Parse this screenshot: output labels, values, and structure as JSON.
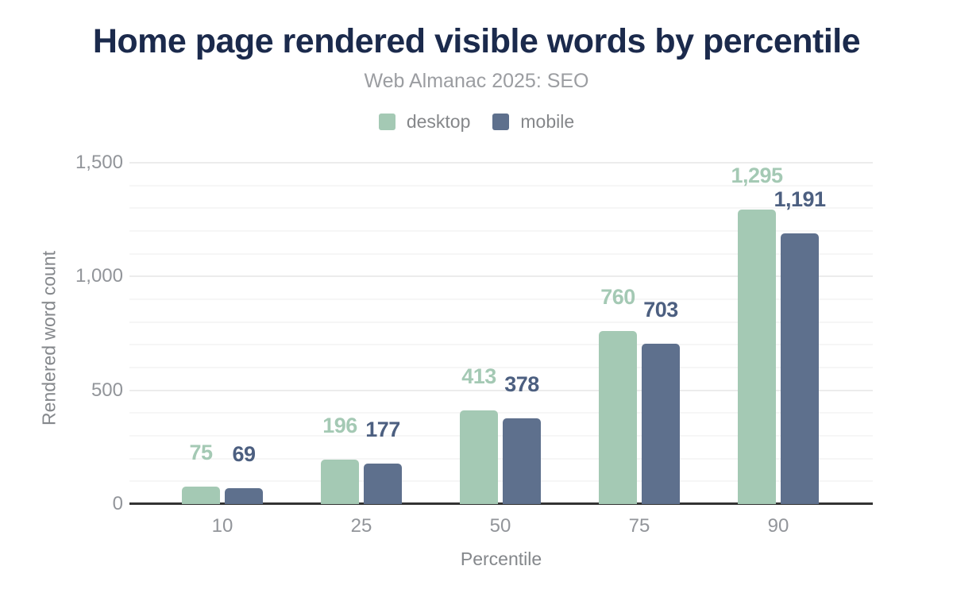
{
  "chart_data": {
    "type": "bar",
    "title": "Home page rendered visible words by percentile",
    "subtitle": "Web Almanac 2025: SEO",
    "categories": [
      "10",
      "25",
      "50",
      "75",
      "90"
    ],
    "series": [
      {
        "name": "desktop",
        "values": [
          75,
          196,
          413,
          760,
          1295
        ],
        "value_labels": [
          "75",
          "196",
          "413",
          "760",
          "1,295"
        ],
        "color": "#a4c9b4",
        "label_color": "#a4c9b4"
      },
      {
        "name": "mobile",
        "values": [
          69,
          177,
          378,
          703,
          1191
        ],
        "value_labels": [
          "69",
          "177",
          "378",
          "703",
          "1,191"
        ],
        "color": "#5e708d",
        "label_color": "#4c5f80"
      }
    ],
    "xlabel": "Percentile",
    "ylabel": "Rendered word count",
    "ylim": [
      0,
      1500
    ],
    "yticks": [
      0,
      500,
      1000,
      1500
    ],
    "ytick_labels": [
      "0",
      "500",
      "1,000",
      "1,500"
    ],
    "minor_grid_step": 100,
    "grid": true,
    "legend_position": "top"
  },
  "colors": {
    "title": "#1b2a4c",
    "subtitle": "#9b9da1",
    "axis_text": "#92959a",
    "axis_title_text": "#84878b",
    "gridline_major": "#ececec",
    "gridline_minor": "#f6f6f6",
    "baseline": "#333333",
    "background": "#ffffff"
  }
}
